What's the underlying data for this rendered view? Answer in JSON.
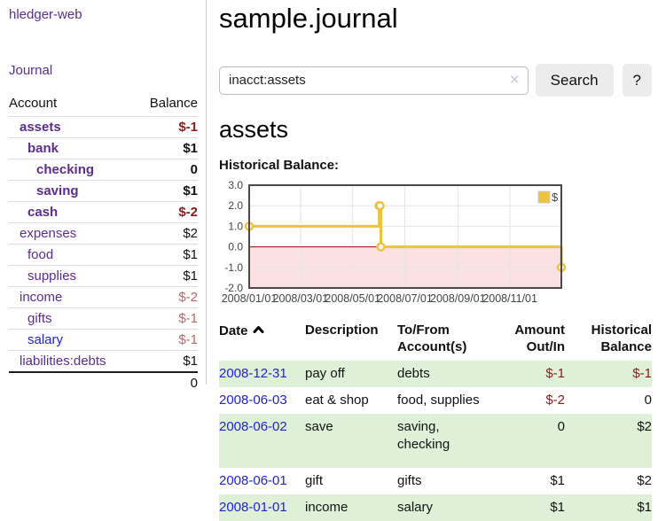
{
  "colors": {
    "accent_purple": "#5b2d90",
    "link_blue": "#2222cf",
    "negative_strong": "#8d1a1a",
    "negative_muted": "#b46a6a",
    "row_green": "#dff0d8",
    "button_gray": "#ececec"
  },
  "sidebar": {
    "brand": "hledger-web",
    "journal_label": "Journal",
    "table": {
      "headers": [
        "Account",
        "Balance"
      ],
      "rows": [
        {
          "account": "assets",
          "balance": "$-1"
        },
        {
          "account": "bank",
          "balance": "$1"
        },
        {
          "account": "checking",
          "balance": "0"
        },
        {
          "account": "saving",
          "balance": "$1"
        },
        {
          "account": "cash",
          "balance": "$-2"
        },
        {
          "account": "expenses",
          "balance": "$2"
        },
        {
          "account": "food",
          "balance": "$1"
        },
        {
          "account": "supplies",
          "balance": "$1"
        },
        {
          "account": "income",
          "balance": "$-2"
        },
        {
          "account": "gifts",
          "balance": "$-1"
        },
        {
          "account": "salary",
          "balance": "$-1"
        },
        {
          "account": "liabilities:debts",
          "balance": "$1"
        }
      ],
      "total": "0"
    }
  },
  "main": {
    "title": "sample.journal",
    "search": {
      "value": "inacct:assets",
      "clear_icon": "✕",
      "button_label": "Search",
      "help_label": "?"
    },
    "account_heading": "assets",
    "chart_label": "Historical Balance:"
  },
  "chart_data": {
    "type": "line",
    "step": true,
    "title": "Historical Balance",
    "series": [
      {
        "name": "$",
        "color": "#edc240",
        "points": [
          [
            "2008-01-01",
            1
          ],
          [
            "2008-06-01",
            2
          ],
          [
            "2008-06-02",
            2
          ],
          [
            "2008-06-03",
            0
          ],
          [
            "2008-12-31",
            -1
          ]
        ]
      }
    ],
    "ylim": [
      -2,
      3
    ],
    "yticks": [
      {
        "v": 3,
        "label": "3.0"
      },
      {
        "v": 2,
        "label": "2.0"
      },
      {
        "v": 1,
        "label": "1.0"
      },
      {
        "v": 0,
        "label": "0.0"
      },
      {
        "v": -1,
        "label": "-1.0"
      },
      {
        "v": -2,
        "label": "-2.0"
      }
    ],
    "xdomain": [
      "2008-01-01",
      "2008-12-31"
    ],
    "xticks": [
      {
        "d": "2008-01-01",
        "label": "2008/01/01"
      },
      {
        "d": "2008-03-01",
        "label": "2008/03/01"
      },
      {
        "d": "2008-05-01",
        "label": "2008/05/01"
      },
      {
        "d": "2008-07-01",
        "label": "2008/07/01"
      },
      {
        "d": "2008-09-01",
        "label": "2008/09/01"
      },
      {
        "d": "2008-11-01",
        "label": "2008/11/01"
      }
    ],
    "grid": true,
    "legend_position": "top-right",
    "colors": {
      "grid": "#e4e4e4",
      "border": "#4a4a4a",
      "zero_line": "#a40000",
      "negative_region": "#fbe1e1",
      "tick_text": "#444444"
    }
  },
  "register": {
    "headers": [
      {
        "label": "Date",
        "sorted": "ascending"
      },
      {
        "label": "Description"
      },
      {
        "label": "To/From Account(s)"
      },
      {
        "label": "Amount Out/In"
      },
      {
        "label": "Historical Balance"
      }
    ],
    "rows": [
      {
        "date": "2008-12-31",
        "description": "pay off",
        "accounts": "debts",
        "amount": "$-1",
        "balance": "$-1"
      },
      {
        "date": "2008-06-03",
        "description": "eat & shop",
        "accounts": "food, supplies",
        "amount": "$-2",
        "balance": "0"
      },
      {
        "date": "2008-06-02",
        "description": "save",
        "accounts": "saving, checking",
        "amount": "0",
        "balance": "$2"
      },
      {
        "date": "2008-06-01",
        "description": "gift",
        "accounts": "gifts",
        "amount": "$1",
        "balance": "$2"
      },
      {
        "date": "2008-01-01",
        "description": "income",
        "accounts": "salary",
        "amount": "$1",
        "balance": "$1"
      }
    ]
  }
}
